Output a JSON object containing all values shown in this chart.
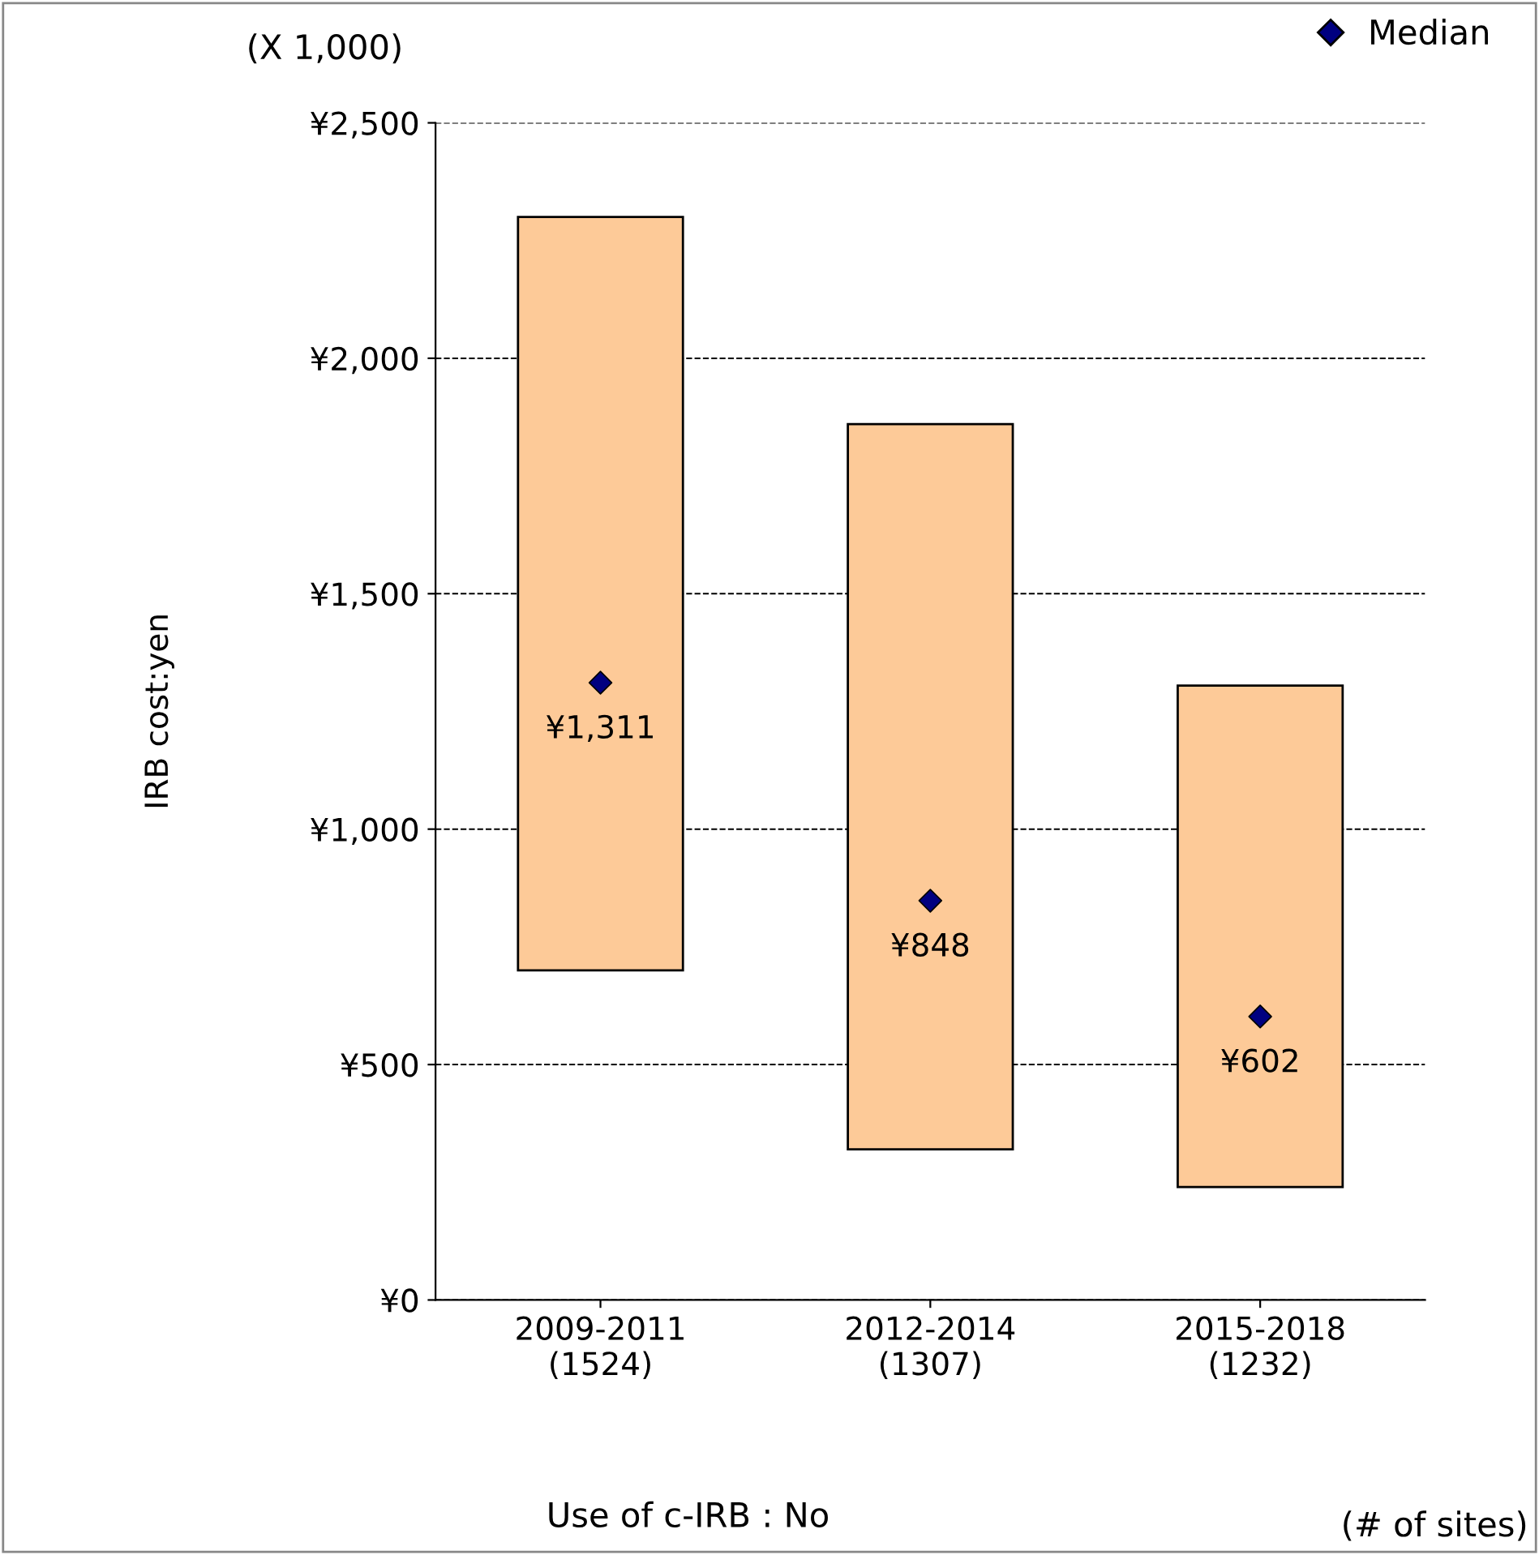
{
  "chart_data": {
    "type": "bar",
    "categories": [
      "2009-2011\n(1524)",
      "2012-2014\n(1307)",
      "2015-2018\n(1232)"
    ],
    "series": [
      {
        "type": "bar",
        "color": "#fdca98",
        "values": [
          1600,
          1540,
          1065
        ],
        "base": [
          700,
          320,
          240
        ]
      },
      {
        "type": "scatter",
        "name": "Median",
        "color": "#000080",
        "marker": "diamond",
        "values": [
          1311,
          848,
          602
        ],
        "value_labels": [
          "¥1,311",
          "¥848",
          "¥602"
        ]
      }
    ],
    "ylabel": "IRB cost:yen",
    "ylim": [
      0,
      2500
    ],
    "yticks": [
      {
        "value": 0,
        "label": "¥0"
      },
      {
        "value": 500,
        "label": "¥500"
      },
      {
        "value": 1000,
        "label": "¥1,000"
      },
      {
        "value": 1500,
        "label": "¥1,500"
      },
      {
        "value": 2000,
        "label": "¥2,000"
      },
      {
        "value": 2500,
        "label": "¥2,500"
      }
    ],
    "grid": "y",
    "line_style": "dashed",
    "legend": "top right",
    "annotations": [
      "(X 1,000)",
      "Use of c-IRB : No",
      "(# of sites)"
    ]
  }
}
